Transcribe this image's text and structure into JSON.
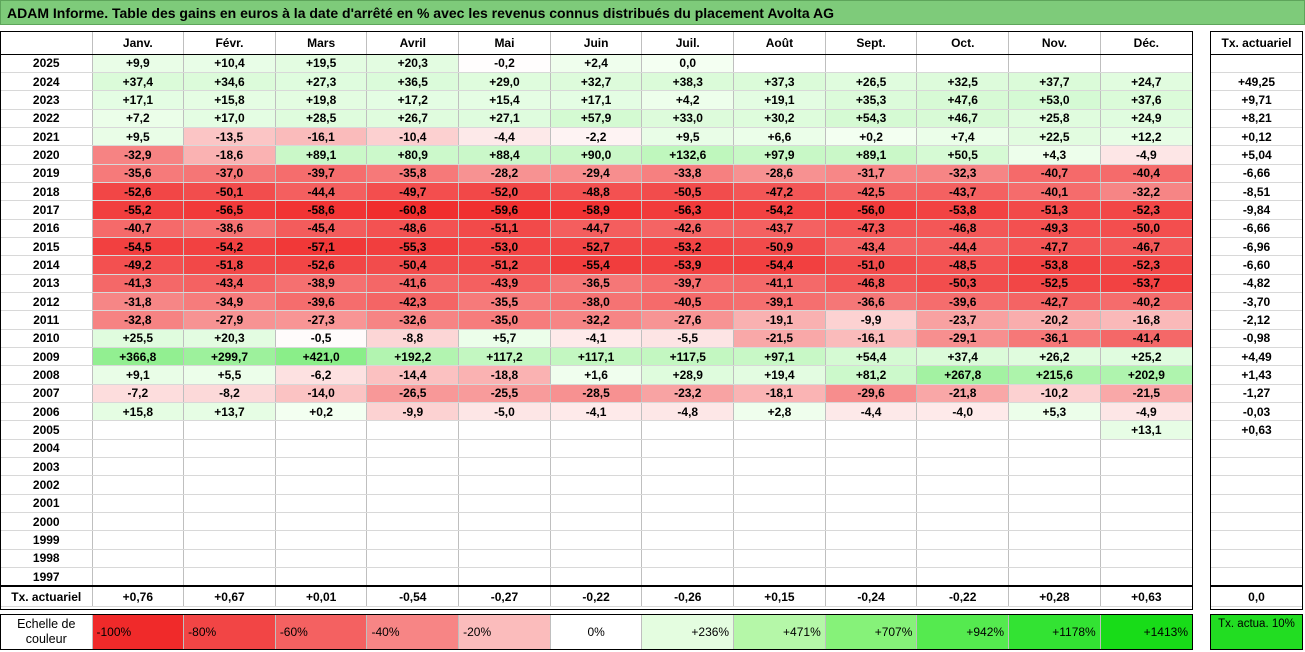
{
  "title": "ADAM Informe. Table des gains en euros à la date d'arrêté en % avec les revenus connus distribués du placement Avolta AG",
  "months": [
    "Janv.",
    "Févr.",
    "Mars",
    "Avril",
    "Mai",
    "Juin",
    "Juil.",
    "Août",
    "Sept.",
    "Oct.",
    "Nov.",
    "Déc."
  ],
  "actuarial_header": "Tx. actuariel",
  "rows": [
    {
      "year": "2025",
      "values": [
        "+9,9",
        "+10,4",
        "+19,5",
        "+20,3",
        "-0,2",
        "+2,4",
        "0,0",
        "",
        "",
        "",
        "",
        ""
      ],
      "act": ""
    },
    {
      "year": "2024",
      "values": [
        "+37,4",
        "+34,6",
        "+27,3",
        "+36,5",
        "+29,0",
        "+32,7",
        "+38,3",
        "+37,3",
        "+26,5",
        "+32,5",
        "+37,7",
        "+24,7"
      ],
      "act": "+49,25"
    },
    {
      "year": "2023",
      "values": [
        "+17,1",
        "+15,8",
        "+19,8",
        "+17,2",
        "+15,4",
        "+17,1",
        "+4,2",
        "+19,1",
        "+35,3",
        "+47,6",
        "+53,0",
        "+37,6"
      ],
      "act": "+9,71"
    },
    {
      "year": "2022",
      "values": [
        "+7,2",
        "+17,0",
        "+28,5",
        "+26,7",
        "+27,1",
        "+57,9",
        "+33,0",
        "+30,2",
        "+54,3",
        "+46,7",
        "+25,8",
        "+24,9"
      ],
      "act": "+8,21"
    },
    {
      "year": "2021",
      "values": [
        "+9,5",
        "-13,5",
        "-16,1",
        "-10,4",
        "-4,4",
        "-2,2",
        "+9,5",
        "+6,6",
        "+0,2",
        "+7,4",
        "+22,5",
        "+12,2"
      ],
      "act": "+0,12"
    },
    {
      "year": "2020",
      "values": [
        "-32,9",
        "-18,6",
        "+89,1",
        "+80,9",
        "+88,4",
        "+90,0",
        "+132,6",
        "+97,9",
        "+89,1",
        "+50,5",
        "+4,3",
        "-4,9"
      ],
      "act": "+5,04"
    },
    {
      "year": "2019",
      "values": [
        "-35,6",
        "-37,0",
        "-39,7",
        "-35,8",
        "-28,2",
        "-29,4",
        "-33,8",
        "-28,6",
        "-31,7",
        "-32,3",
        "-40,7",
        "-40,4"
      ],
      "act": "-6,66"
    },
    {
      "year": "2018",
      "values": [
        "-52,6",
        "-50,1",
        "-44,4",
        "-49,7",
        "-52,0",
        "-48,8",
        "-50,5",
        "-47,2",
        "-42,5",
        "-43,7",
        "-40,1",
        "-32,2"
      ],
      "act": "-8,51"
    },
    {
      "year": "2017",
      "values": [
        "-55,2",
        "-56,5",
        "-58,6",
        "-60,8",
        "-59,6",
        "-58,9",
        "-56,3",
        "-54,2",
        "-56,0",
        "-53,8",
        "-51,3",
        "-52,3"
      ],
      "act": "-9,84"
    },
    {
      "year": "2016",
      "values": [
        "-40,7",
        "-38,6",
        "-45,4",
        "-48,6",
        "-51,1",
        "-44,7",
        "-42,6",
        "-43,7",
        "-47,3",
        "-46,8",
        "-49,3",
        "-50,0"
      ],
      "act": "-6,66"
    },
    {
      "year": "2015",
      "values": [
        "-54,5",
        "-54,2",
        "-57,1",
        "-55,3",
        "-53,0",
        "-52,7",
        "-53,2",
        "-50,9",
        "-43,4",
        "-44,4",
        "-47,7",
        "-46,7"
      ],
      "act": "-6,96"
    },
    {
      "year": "2014",
      "values": [
        "-49,2",
        "-51,8",
        "-52,6",
        "-50,4",
        "-51,2",
        "-55,4",
        "-53,9",
        "-54,4",
        "-51,0",
        "-48,5",
        "-53,8",
        "-52,3"
      ],
      "act": "-6,60"
    },
    {
      "year": "2013",
      "values": [
        "-41,3",
        "-43,4",
        "-38,9",
        "-41,6",
        "-43,9",
        "-36,5",
        "-39,7",
        "-41,1",
        "-46,8",
        "-50,3",
        "-52,5",
        "-53,7"
      ],
      "act": "-4,82"
    },
    {
      "year": "2012",
      "values": [
        "-31,8",
        "-34,9",
        "-39,6",
        "-42,3",
        "-35,5",
        "-38,0",
        "-40,5",
        "-39,1",
        "-36,6",
        "-39,6",
        "-42,7",
        "-40,2"
      ],
      "act": "-3,70"
    },
    {
      "year": "2011",
      "values": [
        "-32,8",
        "-27,9",
        "-27,3",
        "-32,6",
        "-35,0",
        "-32,2",
        "-27,6",
        "-19,1",
        "-9,9",
        "-23,7",
        "-20,2",
        "-16,8"
      ],
      "act": "-2,12"
    },
    {
      "year": "2010",
      "values": [
        "+25,5",
        "+20,3",
        "-0,5",
        "-8,8",
        "+5,7",
        "-4,1",
        "-5,5",
        "-21,5",
        "-16,1",
        "-29,1",
        "-36,1",
        "-41,4"
      ],
      "act": "-0,98"
    },
    {
      "year": "2009",
      "values": [
        "+366,8",
        "+299,7",
        "+421,0",
        "+192,2",
        "+117,2",
        "+117,1",
        "+117,5",
        "+97,1",
        "+54,4",
        "+37,4",
        "+26,2",
        "+25,2"
      ],
      "act": "+4,49"
    },
    {
      "year": "2008",
      "values": [
        "+9,1",
        "+5,5",
        "-6,2",
        "-14,4",
        "-18,8",
        "+1,6",
        "+28,9",
        "+19,4",
        "+81,2",
        "+267,8",
        "+215,6",
        "+202,9"
      ],
      "act": "+1,43"
    },
    {
      "year": "2007",
      "values": [
        "-7,2",
        "-8,2",
        "-14,0",
        "-26,5",
        "-25,5",
        "-28,5",
        "-23,2",
        "-18,1",
        "-29,6",
        "-21,8",
        "-10,2",
        "-21,5"
      ],
      "act": "-1,27"
    },
    {
      "year": "2006",
      "values": [
        "+15,8",
        "+13,7",
        "+0,2",
        "-9,9",
        "-5,0",
        "-4,1",
        "-4,8",
        "+2,8",
        "-4,4",
        "-4,0",
        "+5,3",
        "-4,9"
      ],
      "act": "-0,03"
    },
    {
      "year": "2005",
      "values": [
        "",
        "",
        "",
        "",
        "",
        "",
        "",
        "",
        "",
        "",
        "",
        "+13,1"
      ],
      "act": "+0,63"
    },
    {
      "year": "2004",
      "values": [
        "",
        "",
        "",
        "",
        "",
        "",
        "",
        "",
        "",
        "",
        "",
        ""
      ],
      "act": ""
    },
    {
      "year": "2003",
      "values": [
        "",
        "",
        "",
        "",
        "",
        "",
        "",
        "",
        "",
        "",
        "",
        ""
      ],
      "act": ""
    },
    {
      "year": "2002",
      "values": [
        "",
        "",
        "",
        "",
        "",
        "",
        "",
        "",
        "",
        "",
        "",
        ""
      ],
      "act": ""
    },
    {
      "year": "2001",
      "values": [
        "",
        "",
        "",
        "",
        "",
        "",
        "",
        "",
        "",
        "",
        "",
        ""
      ],
      "act": ""
    },
    {
      "year": "2000",
      "values": [
        "",
        "",
        "",
        "",
        "",
        "",
        "",
        "",
        "",
        "",
        "",
        ""
      ],
      "act": ""
    },
    {
      "year": "1999",
      "values": [
        "",
        "",
        "",
        "",
        "",
        "",
        "",
        "",
        "",
        "",
        "",
        ""
      ],
      "act": ""
    },
    {
      "year": "1998",
      "values": [
        "",
        "",
        "",
        "",
        "",
        "",
        "",
        "",
        "",
        "",
        "",
        ""
      ],
      "act": ""
    },
    {
      "year": "1997",
      "values": [
        "",
        "",
        "",
        "",
        "",
        "",
        "",
        "",
        "",
        "",
        "",
        ""
      ],
      "act": ""
    }
  ],
  "summary": {
    "label": "Tx. actuariel",
    "values": [
      "+0,76",
      "+0,67",
      "+0,01",
      "-0,54",
      "-0,27",
      "-0,22",
      "-0,26",
      "+0,15",
      "-0,24",
      "-0,22",
      "+0,28",
      "+0,63"
    ],
    "act": "0,0"
  },
  "legend": {
    "label": "Echelle de couleur",
    "items": [
      {
        "text": "-100%",
        "color": "#f02a2a",
        "align": "l"
      },
      {
        "text": "-80%",
        "color": "#f24545",
        "align": "l"
      },
      {
        "text": "-60%",
        "color": "#f46161",
        "align": "l"
      },
      {
        "text": "-40%",
        "color": "#f78585",
        "align": "l"
      },
      {
        "text": "-20%",
        "color": "#fbbcbc",
        "align": "l"
      },
      {
        "text": "0%",
        "color": "#ffffff",
        "align": "c"
      },
      {
        "text": "+236%",
        "color": "#e4fde0",
        "align": "r"
      },
      {
        "text": "+471%",
        "color": "#b5f7a8",
        "align": "r"
      },
      {
        "text": "+707%",
        "color": "#86f279",
        "align": "r"
      },
      {
        "text": "+942%",
        "color": "#55ea4f",
        "align": "r"
      },
      {
        "text": "+1178%",
        "color": "#33e333",
        "align": "r"
      },
      {
        "text": "+1413%",
        "color": "#18dc18",
        "align": "r"
      }
    ],
    "act_label": "Tx. actua. 10%",
    "act_color": "#22dd22"
  }
}
